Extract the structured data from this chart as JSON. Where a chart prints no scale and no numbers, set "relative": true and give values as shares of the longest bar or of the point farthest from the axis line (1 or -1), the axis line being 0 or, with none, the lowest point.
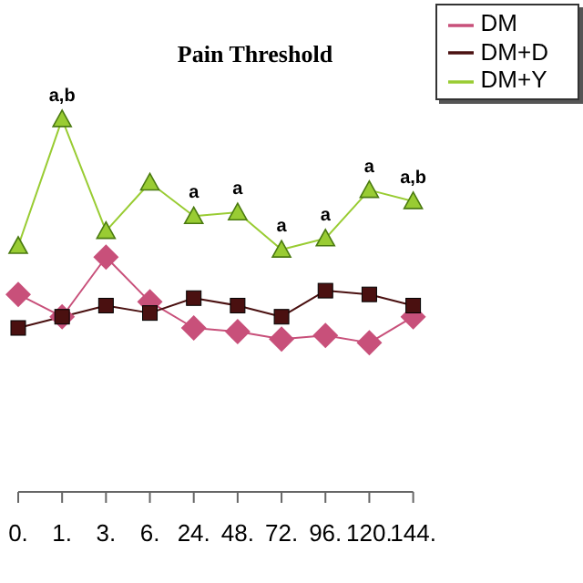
{
  "chart_data": {
    "type": "line",
    "title": "Pain Threshold",
    "relative": true,
    "categories": [
      "0.",
      "1.",
      "3.",
      "6.",
      "24.",
      "48.",
      "72.",
      "96.",
      "120.",
      "144."
    ],
    "series": [
      {
        "name": "DM",
        "color": "#c8507a",
        "marker": "diamond",
        "values": [
          0.53,
          0.47,
          0.63,
          0.51,
          0.44,
          0.43,
          0.41,
          0.42,
          0.4,
          0.47
        ]
      },
      {
        "name": "DM+D",
        "color": "#4a1010",
        "marker": "square",
        "values": [
          0.44,
          0.47,
          0.5,
          0.48,
          0.52,
          0.5,
          0.47,
          0.54,
          0.53,
          0.5
        ]
      },
      {
        "name": "DM+Y",
        "color": "#99cc33",
        "marker": "triangle",
        "values": [
          0.66,
          1.0,
          0.7,
          0.83,
          0.74,
          0.75,
          0.65,
          0.68,
          0.81,
          0.78
        ]
      }
    ],
    "annotations": [
      {
        "text": "a,b",
        "x": "1.",
        "y": 1.0
      },
      {
        "text": "a",
        "x": "24.",
        "y": 0.74
      },
      {
        "text": "a",
        "x": "48.",
        "y": 0.75
      },
      {
        "text": "a",
        "x": "72.",
        "y": 0.65
      },
      {
        "text": "a",
        "x": "96.",
        "y": 0.68
      },
      {
        "text": "a",
        "x": "120.",
        "y": 0.81
      },
      {
        "text": "a,b",
        "x": "144.",
        "y": 0.78
      }
    ],
    "legend": "top right",
    "grid": false
  }
}
